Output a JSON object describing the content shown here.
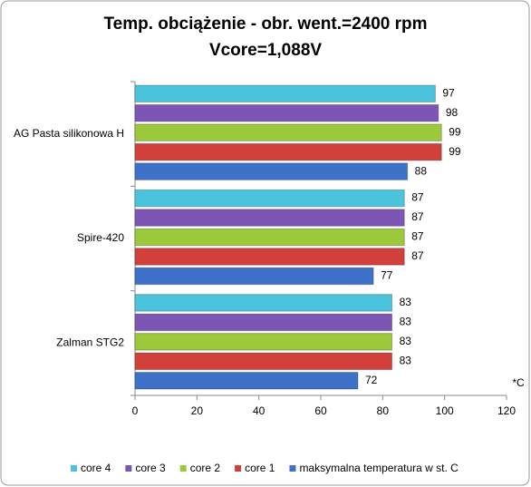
{
  "chart_data": {
    "type": "bar",
    "orientation": "horizontal",
    "title": [
      "Temp. obciążenie - obr. went.=2400 rpm",
      "Vcore=1,088V"
    ],
    "x_label": "*C",
    "categories": [
      "AG Pasta silikonowa H",
      "Spire-420",
      "Zalman STG2"
    ],
    "series": [
      {
        "name": "core 4",
        "color": "#4cc3dc",
        "values": [
          97,
          87,
          83
        ]
      },
      {
        "name": "core 3",
        "color": "#7d55b5",
        "values": [
          98,
          87,
          83
        ]
      },
      {
        "name": "core 2",
        "color": "#9cc83c",
        "values": [
          99,
          87,
          83
        ]
      },
      {
        "name": "core 1",
        "color": "#d2403c",
        "values": [
          99,
          87,
          83
        ]
      },
      {
        "name": "maksymalna temperatura w st. C",
        "color": "#3d72c8",
        "values": [
          88,
          77,
          72
        ]
      }
    ],
    "xlim": [
      0,
      120
    ],
    "xticks": [
      0,
      20,
      40,
      60,
      80,
      100,
      120
    ],
    "grid": false,
    "legend": "bottom"
  }
}
